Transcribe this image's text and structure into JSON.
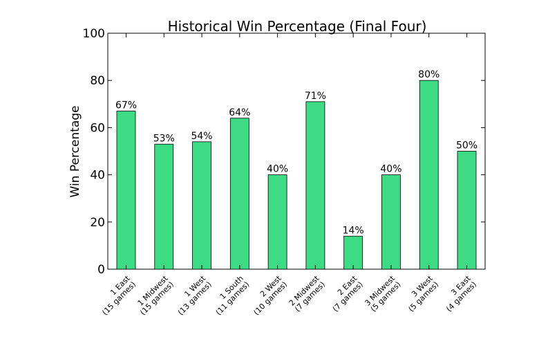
{
  "chart_data": {
    "type": "bar",
    "title": "Historical Win Percentage (Final Four)",
    "xlabel": "",
    "ylabel": "Win Percentage",
    "ylim": [
      0,
      100
    ],
    "yticks": [
      "0",
      "20",
      "40",
      "60",
      "80",
      "100"
    ],
    "grid": false,
    "bar_color": "#3ddc84",
    "categories": [
      [
        "1 East",
        "(15 games)"
      ],
      [
        "1 Midwest",
        "(15 games)"
      ],
      [
        "1 West",
        "(13 games)"
      ],
      [
        "1 South",
        "(11 games)"
      ],
      [
        "2 West",
        "(10 games)"
      ],
      [
        "2 Midwest",
        "(7 games)"
      ],
      [
        "2 East",
        "(7 games)"
      ],
      [
        "3 Midwest",
        "(5 games)"
      ],
      [
        "3 West",
        "(5 games)"
      ],
      [
        "3 East",
        "(4 games)"
      ]
    ],
    "values": [
      67,
      53,
      54,
      64,
      40,
      71,
      14,
      40,
      80,
      50
    ],
    "data_labels": [
      "67%",
      "53%",
      "54%",
      "64%",
      "40%",
      "71%",
      "14%",
      "40%",
      "80%",
      "50%"
    ]
  }
}
